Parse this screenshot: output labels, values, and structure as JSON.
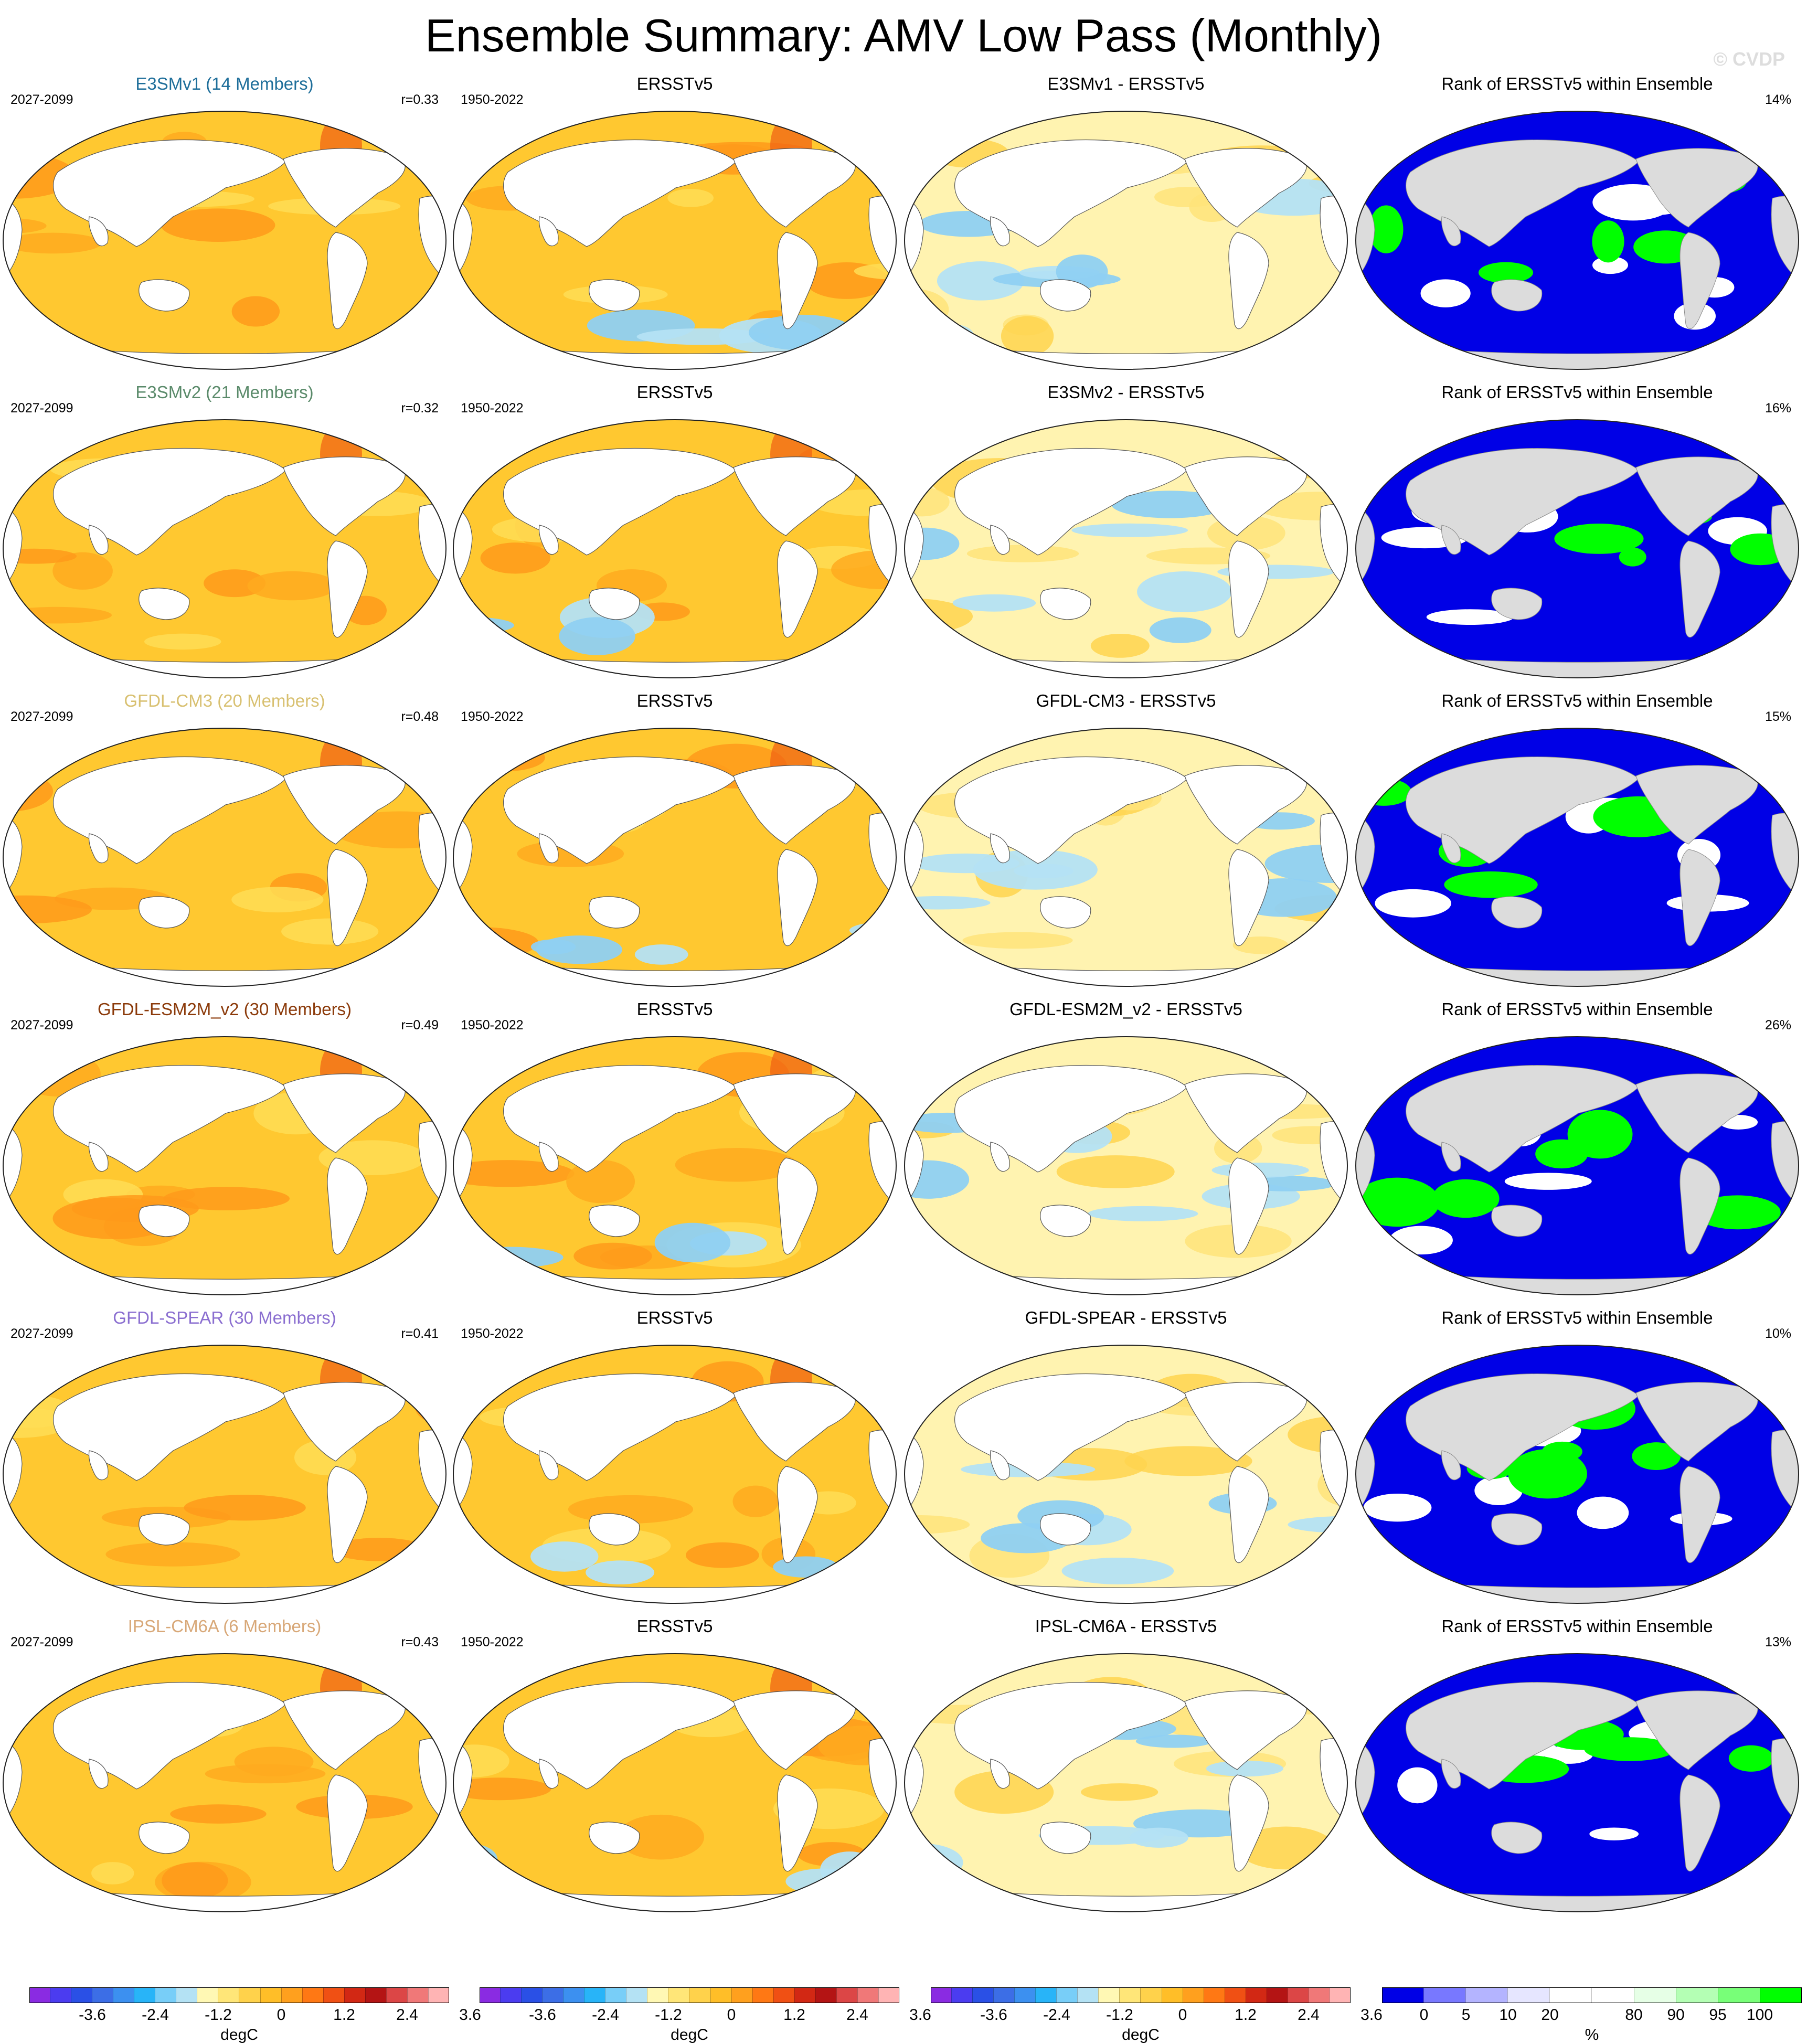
{
  "title": "Ensemble Summary: AMV Low Pass (Monthly)",
  "watermark": "© CVDP",
  "colors": {
    "model_name_colors": [
      "#1e6e9a",
      "#5a8a6a",
      "#d8c070",
      "#8b3a0a",
      "#8a6ed0",
      "#d8a878"
    ],
    "land": "#ffffff",
    "rank_land": "#dcdcdc",
    "warm_fill": "#ffc830",
    "rank_low": "#0000e6",
    "rank_high": "#00ff00"
  },
  "columns": [
    {
      "kind": "model_ensemble_mean",
      "period": "2027-2099"
    },
    {
      "kind": "observations",
      "title": "ERSSTv5",
      "period": "1950-2022"
    },
    {
      "kind": "difference"
    },
    {
      "kind": "rank",
      "title": "Rank of ERSSTv5 within Ensemble"
    }
  ],
  "rows": [
    {
      "model_title": "E3SMv1 (14 Members)",
      "model_period": "2027-2099",
      "pattern_r": "r=0.33",
      "obs_title": "ERSSTv5",
      "obs_period": "1950-2022",
      "diff_title": "E3SMv1 - ERSSTv5",
      "rank_title": "Rank of ERSSTv5 within Ensemble",
      "rank_pct": "14%"
    },
    {
      "model_title": "E3SMv2 (21 Members)",
      "model_period": "2027-2099",
      "pattern_r": "r=0.32",
      "obs_title": "ERSSTv5",
      "obs_period": "1950-2022",
      "diff_title": "E3SMv2 - ERSSTv5",
      "rank_title": "Rank of ERSSTv5 within Ensemble",
      "rank_pct": "16%"
    },
    {
      "model_title": "GFDL-CM3 (20 Members)",
      "model_period": "2027-2099",
      "pattern_r": "r=0.48",
      "obs_title": "ERSSTv5",
      "obs_period": "1950-2022",
      "diff_title": "GFDL-CM3 - ERSSTv5",
      "rank_title": "Rank of ERSSTv5 within Ensemble",
      "rank_pct": "15%"
    },
    {
      "model_title": "GFDL-ESM2M_v2 (30 Members)",
      "model_period": "2027-2099",
      "pattern_r": "r=0.49",
      "obs_title": "ERSSTv5",
      "obs_period": "1950-2022",
      "diff_title": "GFDL-ESM2M_v2 - ERSSTv5",
      "rank_title": "Rank of ERSSTv5 within Ensemble",
      "rank_pct": "26%"
    },
    {
      "model_title": "GFDL-SPEAR (30 Members)",
      "model_period": "2027-2099",
      "pattern_r": "r=0.41",
      "obs_title": "ERSSTv5",
      "obs_period": "1950-2022",
      "diff_title": "GFDL-SPEAR - ERSSTv5",
      "rank_title": "Rank of ERSSTv5 within Ensemble",
      "rank_pct": "10%"
    },
    {
      "model_title": "IPSL-CM6A (6 Members)",
      "model_period": "2027-2099",
      "pattern_r": "r=0.43",
      "obs_title": "ERSSTv5",
      "obs_period": "1950-2022",
      "diff_title": "IPSL-CM6A - ERSSTv5",
      "rank_title": "Rank of ERSSTv5 within Ensemble",
      "rank_pct": "13%"
    }
  ],
  "chart_data": {
    "type": "heatmap",
    "layout": "6 rows x 4 global map panels",
    "field": "AMV Low Pass (Monthly) regression pattern",
    "colorbars": [
      {
        "panel_columns": "1",
        "units": "degC",
        "tick_labels": [
          "-3.6",
          "-2.4",
          "-1.2",
          "0",
          "1.2",
          "2.4",
          "3.6"
        ],
        "colors": [
          "#8a2be2",
          "#4b3cf0",
          "#2a50e6",
          "#3c6ee6",
          "#3c90f0",
          "#28b4f8",
          "#78cef8",
          "#b4e2f4",
          "#fff8b4",
          "#ffe678",
          "#ffd24b",
          "#ffbe28",
          "#ffa01e",
          "#ff7814",
          "#f05014",
          "#d22814",
          "#b41414",
          "#dc4646",
          "#f07878",
          "#ffb4b4"
        ]
      },
      {
        "panel_columns": "2",
        "units": "degC",
        "tick_labels": [
          "-3.6",
          "-2.4",
          "-1.2",
          "0",
          "1.2",
          "2.4",
          "3.6"
        ]
      },
      {
        "panel_columns": "3",
        "units": "degC",
        "tick_labels": [
          "-3.6",
          "-2.4",
          "-1.2",
          "0",
          "1.2",
          "2.4",
          "3.6"
        ]
      },
      {
        "panel_columns": "4",
        "units": "%",
        "tick_labels": [
          "0",
          "5",
          "10",
          "20",
          "80",
          "90",
          "95",
          "100"
        ],
        "colors": [
          "#0000e6",
          "#7878ff",
          "#b4b4ff",
          "#e6e6ff",
          "#ffffff",
          "#ffffff",
          "#e6ffe6",
          "#b4ffb4",
          "#78ff78",
          "#00ff00"
        ]
      }
    ],
    "rank_percent_by_row": [
      14,
      16,
      15,
      26,
      10,
      13
    ],
    "pattern_correlation_by_row": [
      0.33,
      0.32,
      0.48,
      0.49,
      0.41,
      0.43
    ]
  }
}
